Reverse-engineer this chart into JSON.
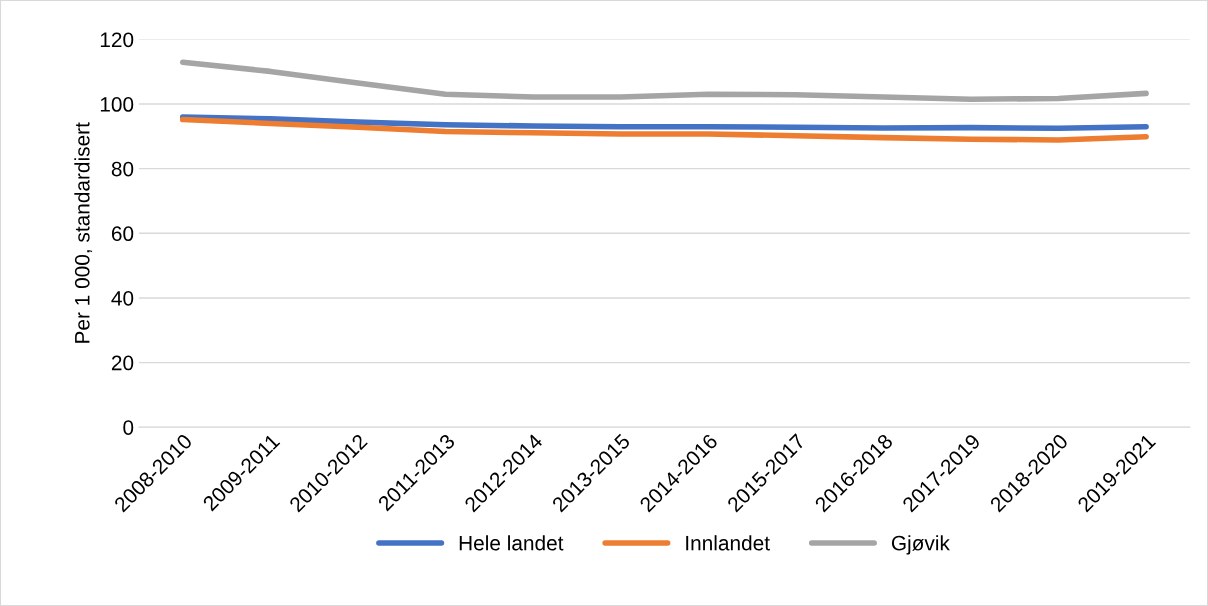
{
  "chart_data": {
    "type": "line",
    "ylabel": "Per 1 000, standardisert",
    "categories": [
      "2008-2010",
      "2009-2011",
      "2010-2012",
      "2011-2013",
      "2012-2014",
      "2013-2015",
      "2014-2016",
      "2015-2017",
      "2016-2018",
      "2017-2019",
      "2018-2020",
      "2019-2021"
    ],
    "series": [
      {
        "name": "Hele landet",
        "color": "#4472c4",
        "values": [
          96,
          95.4,
          94.4,
          93.6,
          93.2,
          93,
          93,
          92.8,
          92.6,
          92.7,
          92.5,
          93
        ]
      },
      {
        "name": "Innlandet",
        "color": "#ed7d31",
        "values": [
          95.2,
          94,
          92.8,
          91.5,
          91.1,
          90.7,
          90.7,
          90.2,
          89.6,
          89.1,
          88.9,
          89.9
        ]
      },
      {
        "name": "Gjøvik",
        "color": "#a5a5a5",
        "values": [
          112.9,
          110.1,
          106.5,
          103,
          102.2,
          102.2,
          103,
          102.9,
          102.2,
          101.5,
          101.7,
          103.3
        ]
      }
    ],
    "ylim": [
      0,
      120
    ],
    "yticks": [
      0,
      20,
      40,
      60,
      80,
      100,
      120
    ],
    "grid": "y",
    "legend": "bottom",
    "marker": "none",
    "line_style": "solid"
  }
}
